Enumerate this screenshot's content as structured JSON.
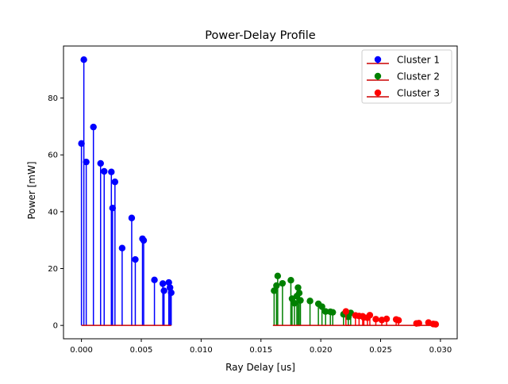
{
  "chart_data": {
    "type": "stem",
    "title": "Power-Delay Profile",
    "xlabel": "Ray Delay [us]",
    "ylabel": "Power [mW]",
    "xlim": [
      -0.0015,
      0.0314
    ],
    "ylim": [
      -4.7,
      98.3
    ],
    "xticks": [
      0.0,
      0.005,
      0.01,
      0.015,
      0.02,
      0.025,
      0.03
    ],
    "xtick_labels": [
      "0.000",
      "0.005",
      "0.010",
      "0.015",
      "0.020",
      "0.025",
      "0.030"
    ],
    "yticks": [
      0,
      20,
      40,
      60,
      80
    ],
    "ytick_labels": [
      "0",
      "20",
      "40",
      "60",
      "80"
    ],
    "grid": false,
    "legend_position": "top-right",
    "series": [
      {
        "name": "Cluster 1",
        "color": "#0000ff",
        "baseline_color": "#cc0000",
        "baseline_range": [
          0.0,
          0.0075
        ],
        "points": [
          {
            "x": 0.0,
            "y": 64.0
          },
          {
            "x": 0.0002,
            "y": 93.5
          },
          {
            "x": 0.0004,
            "y": 57.5
          },
          {
            "x": 0.001,
            "y": 69.8
          },
          {
            "x": 0.0016,
            "y": 57.0
          },
          {
            "x": 0.0019,
            "y": 54.2
          },
          {
            "x": 0.0025,
            "y": 54.0
          },
          {
            "x": 0.0026,
            "y": 41.3
          },
          {
            "x": 0.0028,
            "y": 50.5
          },
          {
            "x": 0.0034,
            "y": 27.2
          },
          {
            "x": 0.0042,
            "y": 37.8
          },
          {
            "x": 0.0045,
            "y": 23.2
          },
          {
            "x": 0.0051,
            "y": 30.5
          },
          {
            "x": 0.0052,
            "y": 29.9
          },
          {
            "x": 0.0061,
            "y": 16.0
          },
          {
            "x": 0.0068,
            "y": 14.7
          },
          {
            "x": 0.0069,
            "y": 12.2
          },
          {
            "x": 0.0073,
            "y": 15.1
          },
          {
            "x": 0.0074,
            "y": 13.3
          },
          {
            "x": 0.0075,
            "y": 11.5
          }
        ]
      },
      {
        "name": "Cluster 2",
        "color": "#008000",
        "baseline_color": "#cc0000",
        "baseline_range": [
          0.016,
          0.0225
        ],
        "points": [
          {
            "x": 0.0161,
            "y": 12.2
          },
          {
            "x": 0.0163,
            "y": 14.0
          },
          {
            "x": 0.0164,
            "y": 17.4
          },
          {
            "x": 0.0168,
            "y": 14.8
          },
          {
            "x": 0.0175,
            "y": 15.9
          },
          {
            "x": 0.0176,
            "y": 9.4
          },
          {
            "x": 0.0178,
            "y": 7.8
          },
          {
            "x": 0.018,
            "y": 10.3
          },
          {
            "x": 0.0181,
            "y": 13.3
          },
          {
            "x": 0.0182,
            "y": 11.4
          },
          {
            "x": 0.0183,
            "y": 8.8
          },
          {
            "x": 0.0191,
            "y": 8.6
          },
          {
            "x": 0.0198,
            "y": 7.6
          },
          {
            "x": 0.0201,
            "y": 6.6
          },
          {
            "x": 0.0204,
            "y": 4.9
          },
          {
            "x": 0.0208,
            "y": 4.8
          },
          {
            "x": 0.021,
            "y": 4.6
          },
          {
            "x": 0.0219,
            "y": 3.9
          },
          {
            "x": 0.0223,
            "y": 3.0
          },
          {
            "x": 0.0225,
            "y": 4.4
          }
        ]
      },
      {
        "name": "Cluster 3",
        "color": "#ff0000",
        "baseline_color": "#cc0000",
        "baseline_range": [
          0.0221,
          0.0296
        ],
        "points": [
          {
            "x": 0.0221,
            "y": 4.9
          },
          {
            "x": 0.0229,
            "y": 3.5
          },
          {
            "x": 0.0232,
            "y": 3.3
          },
          {
            "x": 0.0235,
            "y": 3.2
          },
          {
            "x": 0.0236,
            "y": 2.8
          },
          {
            "x": 0.0239,
            "y": 2.7
          },
          {
            "x": 0.0241,
            "y": 3.6
          },
          {
            "x": 0.0246,
            "y": 2.2
          },
          {
            "x": 0.0251,
            "y": 1.9
          },
          {
            "x": 0.0255,
            "y": 2.3
          },
          {
            "x": 0.0263,
            "y": 2.1
          },
          {
            "x": 0.0265,
            "y": 1.8
          },
          {
            "x": 0.028,
            "y": 0.7
          },
          {
            "x": 0.0282,
            "y": 0.8
          },
          {
            "x": 0.029,
            "y": 1.0
          },
          {
            "x": 0.0294,
            "y": 0.5
          },
          {
            "x": 0.0296,
            "y": 0.4
          }
        ]
      }
    ]
  }
}
